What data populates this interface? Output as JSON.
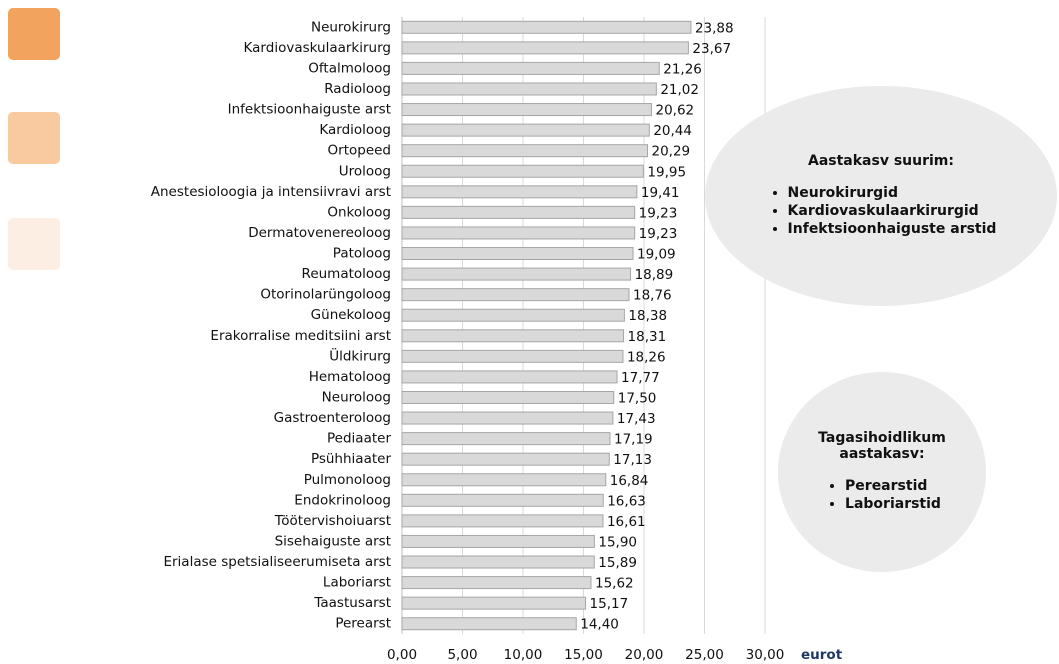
{
  "chart_data": {
    "type": "bar",
    "orientation": "horizontal",
    "categories": [
      "Neurokirurg",
      "Kardiovaskulaarkirurg",
      "Oftalmoloog",
      "Radioloog",
      "Infektsioonhaiguste arst",
      "Kardioloog",
      "Ortopeed",
      "Uroloog",
      "Anestesioloogia ja intensiivravi arst",
      "Onkoloog",
      "Dermatovenereoloog",
      "Patoloog",
      "Reumatoloog",
      "Otorinolarüngoloog",
      "Günekoloog",
      "Erakorralise meditsiini arst",
      "Üldkirurg",
      "Hematoloog",
      "Neuroloog",
      "Gastroenteroloog",
      "Pediaater",
      "Psühhiaater",
      "Pulmonoloog",
      "Endokrinoloog",
      "Töötervishoiuarst",
      "Sisehaiguste arst",
      "Erialase spetsialiseerumiseta arst",
      "Laboriarst",
      "Taastusarst",
      "Perearst"
    ],
    "values": [
      23.88,
      23.67,
      21.26,
      21.02,
      20.62,
      20.44,
      20.29,
      19.95,
      19.41,
      19.23,
      19.23,
      19.09,
      18.89,
      18.76,
      18.38,
      18.31,
      18.26,
      17.77,
      17.5,
      17.43,
      17.19,
      17.13,
      16.84,
      16.63,
      16.61,
      15.9,
      15.89,
      15.62,
      15.17,
      14.4
    ],
    "value_labels": [
      "23,88",
      "23,67",
      "21,26",
      "21,02",
      "20,62",
      "20,44",
      "20,29",
      "19,95",
      "19,41",
      "19,23",
      "19,23",
      "19,09",
      "18,89",
      "18,76",
      "18,38",
      "18,31",
      "18,26",
      "17,77",
      "17,50",
      "17,43",
      "17,19",
      "17,13",
      "16,84",
      "16,63",
      "16,61",
      "15,90",
      "15,89",
      "15,62",
      "15,17",
      "14,40"
    ],
    "color": "#d9d9d9",
    "xlim": [
      0,
      30
    ],
    "xticks": [
      {
        "value": 0,
        "label": "0,00"
      },
      {
        "value": 5,
        "label": "5,00"
      },
      {
        "value": 10,
        "label": "10,00"
      },
      {
        "value": 15,
        "label": "15,00"
      },
      {
        "value": 20,
        "label": "20,00"
      },
      {
        "value": 25,
        "label": "25,00"
      },
      {
        "value": 30,
        "label": "30,00"
      }
    ],
    "x_label": "eurot",
    "grid": true,
    "annotations": [
      {
        "title": "Aastakasv suurim:",
        "items": [
          "Neurokirurgid",
          "Kardiovaskulaarkirurgid",
          "Infektsioonhaiguste arstid"
        ]
      },
      {
        "title": "Tagasihoidlikum aastakasv:",
        "items": [
          "Perearstid",
          "Laboriarstid"
        ]
      }
    ]
  }
}
